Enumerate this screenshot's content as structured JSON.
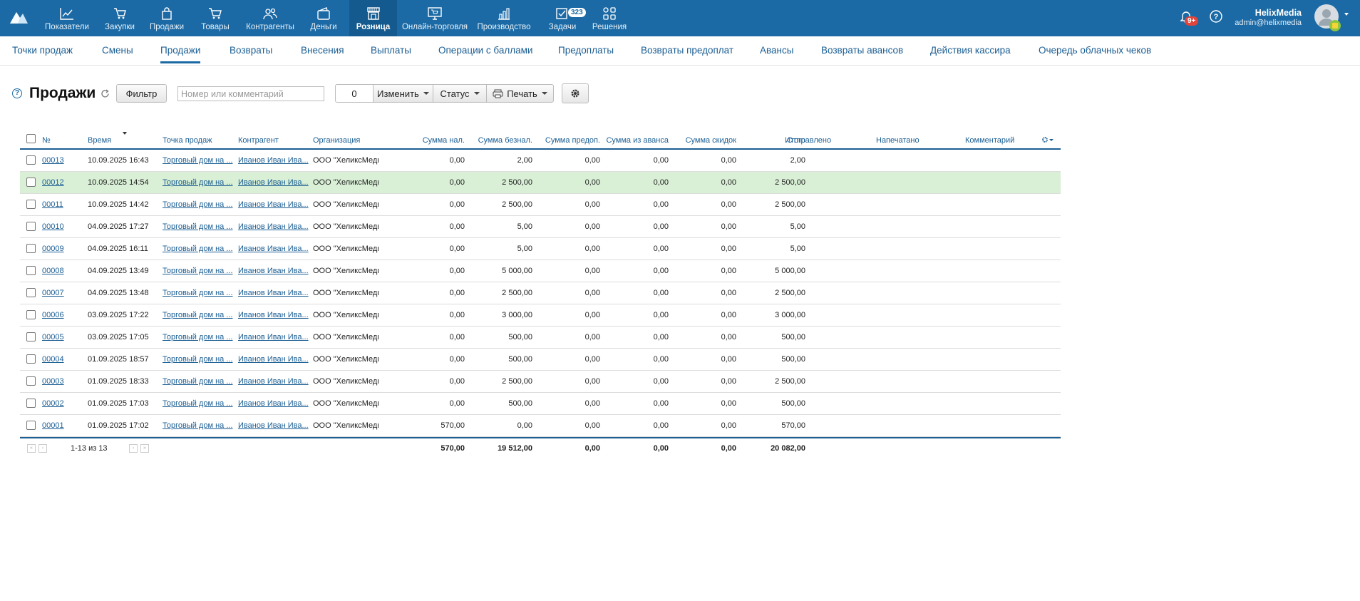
{
  "topnav": {
    "items": [
      {
        "label": "Показатели",
        "icon": "chart-line-icon"
      },
      {
        "label": "Закупки",
        "icon": "cart-in-icon"
      },
      {
        "label": "Продажи",
        "icon": "bag-icon"
      },
      {
        "label": "Товары",
        "icon": "shopping-cart-icon"
      },
      {
        "label": "Контрагенты",
        "icon": "people-icon"
      },
      {
        "label": "Деньги",
        "icon": "wallet-icon"
      },
      {
        "label": "Розница",
        "icon": "store-icon"
      },
      {
        "label": "Онлайн-торговля",
        "icon": "monitor-cart-icon"
      },
      {
        "label": "Производство",
        "icon": "bars-icon"
      },
      {
        "label": "Задачи",
        "icon": "check-square-icon"
      },
      {
        "label": "Решения",
        "icon": "grid-icon"
      }
    ],
    "tasks_badge": "323",
    "notifications_badge": "9+",
    "user_name": "HelixMedia",
    "user_email": "admin@helixmedia"
  },
  "subnav": {
    "items": [
      "Точки продаж",
      "Смены",
      "Продажи",
      "Возвраты",
      "Внесения",
      "Выплаты",
      "Операции с баллами",
      "Предоплаты",
      "Возвраты предоплат",
      "Авансы",
      "Возвраты авансов",
      "Действия кассира",
      "Очередь облачных чеков"
    ]
  },
  "toolbar": {
    "help": "?",
    "title": "Продажи",
    "filter_label": "Фильтр",
    "search_placeholder": "Номер или комментарий",
    "selected_count": "0",
    "change_label": "Изменить",
    "status_label": "Статус",
    "print_label": "Печать"
  },
  "table": {
    "headers": {
      "num": "№",
      "time": "Время",
      "point": "Точка продаж",
      "contractor": "Контрагент",
      "org": "Организация",
      "cash": "Сумма нал.",
      "noncash": "Сумма безнал.",
      "prepaid": "Сумма предоп.",
      "advance": "Сумма из аванса",
      "discount": "Сумма скидок",
      "total": "Итого",
      "sent": "Отправлено",
      "printed": "Напечатано",
      "comment": "Комментарий"
    },
    "rows": [
      {
        "num": "00013",
        "time": "10.09.2025 16:43",
        "point": "Торговый дом на ...",
        "contractor": "Иванов Иван Ива...",
        "org": "ООО \"ХеликсМедь",
        "cash": "0,00",
        "noncash": "2,00",
        "prepaid": "0,00",
        "advance": "0,00",
        "discount": "0,00",
        "total": "2,00"
      },
      {
        "num": "00012",
        "time": "10.09.2025 14:54",
        "point": "Торговый дом на ...",
        "contractor": "Иванов Иван Ива...",
        "org": "ООО \"ХеликсМедь",
        "cash": "0,00",
        "noncash": "2 500,00",
        "prepaid": "0,00",
        "advance": "0,00",
        "discount": "0,00",
        "total": "2 500,00"
      },
      {
        "num": "00011",
        "time": "10.09.2025 14:42",
        "point": "Торговый дом на ...",
        "contractor": "Иванов Иван Ива...",
        "org": "ООО \"ХеликсМедь",
        "cash": "0,00",
        "noncash": "2 500,00",
        "prepaid": "0,00",
        "advance": "0,00",
        "discount": "0,00",
        "total": "2 500,00"
      },
      {
        "num": "00010",
        "time": "04.09.2025 17:27",
        "point": "Торговый дом на ...",
        "contractor": "Иванов Иван Ива...",
        "org": "ООО \"ХеликсМедь",
        "cash": "0,00",
        "noncash": "5,00",
        "prepaid": "0,00",
        "advance": "0,00",
        "discount": "0,00",
        "total": "5,00"
      },
      {
        "num": "00009",
        "time": "04.09.2025 16:11",
        "point": "Торговый дом на ...",
        "contractor": "Иванов Иван Ива...",
        "org": "ООО \"ХеликсМедь",
        "cash": "0,00",
        "noncash": "5,00",
        "prepaid": "0,00",
        "advance": "0,00",
        "discount": "0,00",
        "total": "5,00"
      },
      {
        "num": "00008",
        "time": "04.09.2025 13:49",
        "point": "Торговый дом на ...",
        "contractor": "Иванов Иван Ива...",
        "org": "ООО \"ХеликсМедь",
        "cash": "0,00",
        "noncash": "5 000,00",
        "prepaid": "0,00",
        "advance": "0,00",
        "discount": "0,00",
        "total": "5 000,00"
      },
      {
        "num": "00007",
        "time": "04.09.2025 13:48",
        "point": "Торговый дом на ...",
        "contractor": "Иванов Иван Ива...",
        "org": "ООО \"ХеликсМедь",
        "cash": "0,00",
        "noncash": "2 500,00",
        "prepaid": "0,00",
        "advance": "0,00",
        "discount": "0,00",
        "total": "2 500,00"
      },
      {
        "num": "00006",
        "time": "03.09.2025 17:22",
        "point": "Торговый дом на ...",
        "contractor": "Иванов Иван Ива...",
        "org": "ООО \"ХеликсМедь",
        "cash": "0,00",
        "noncash": "3 000,00",
        "prepaid": "0,00",
        "advance": "0,00",
        "discount": "0,00",
        "total": "3 000,00"
      },
      {
        "num": "00005",
        "time": "03.09.2025 17:05",
        "point": "Торговый дом на ...",
        "contractor": "Иванов Иван Ива...",
        "org": "ООО \"ХеликсМедь",
        "cash": "0,00",
        "noncash": "500,00",
        "prepaid": "0,00",
        "advance": "0,00",
        "discount": "0,00",
        "total": "500,00"
      },
      {
        "num": "00004",
        "time": "01.09.2025 18:57",
        "point": "Торговый дом на ...",
        "contractor": "Иванов Иван Ива...",
        "org": "ООО \"ХеликсМедь",
        "cash": "0,00",
        "noncash": "500,00",
        "prepaid": "0,00",
        "advance": "0,00",
        "discount": "0,00",
        "total": "500,00"
      },
      {
        "num": "00003",
        "time": "01.09.2025 18:33",
        "point": "Торговый дом на ...",
        "contractor": "Иванов Иван Ива...",
        "org": "ООО \"ХеликсМедь",
        "cash": "0,00",
        "noncash": "2 500,00",
        "prepaid": "0,00",
        "advance": "0,00",
        "discount": "0,00",
        "total": "2 500,00"
      },
      {
        "num": "00002",
        "time": "01.09.2025 17:03",
        "point": "Торговый дом на ...",
        "contractor": "Иванов Иван Ива...",
        "org": "ООО \"ХеликсМедь",
        "cash": "0,00",
        "noncash": "500,00",
        "prepaid": "0,00",
        "advance": "0,00",
        "discount": "0,00",
        "total": "500,00"
      },
      {
        "num": "00001",
        "time": "01.09.2025 17:02",
        "point": "Торговый дом на ...",
        "contractor": "Иванов Иван Ива...",
        "org": "ООО \"ХеликсМедь",
        "cash": "570,00",
        "noncash": "0,00",
        "prepaid": "0,00",
        "advance": "0,00",
        "discount": "0,00",
        "total": "570,00"
      }
    ],
    "highlighted_row": "00012",
    "footer": {
      "range": "1-13 из 13",
      "cash": "570,00",
      "noncash": "19 512,00",
      "prepaid": "0,00",
      "advance": "0,00",
      "discount": "0,00",
      "total": "20 082,00"
    }
  },
  "colors": {
    "accent": "#1b6aa5",
    "highlight_row": "#d9f0d6"
  }
}
